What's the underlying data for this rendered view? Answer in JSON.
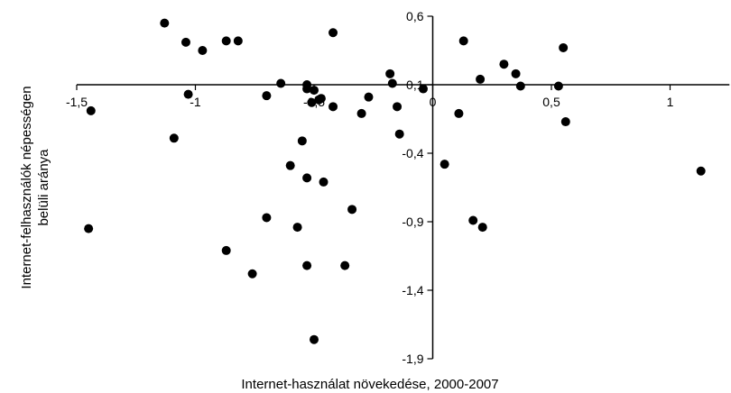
{
  "chart_data": {
    "type": "scatter",
    "xlabel": "Internet-használat növekedése, 2000-2007",
    "ylabel": [
      "Internet-felhasználók népességen",
      "belüli aránya"
    ],
    "xlim": [
      -1.5,
      1.25
    ],
    "ylim": [
      -1.9,
      0.6
    ],
    "x_ticks": [
      {
        "value": -1.5,
        "label": "-1,5"
      },
      {
        "value": -1,
        "label": "-1"
      },
      {
        "value": -0.5,
        "label": "-0,5"
      },
      {
        "value": 0,
        "label": "0"
      },
      {
        "value": 0.5,
        "label": "0,5"
      },
      {
        "value": 1,
        "label": "1"
      }
    ],
    "y_ticks": [
      {
        "value": 0.6,
        "label": "0,6"
      },
      {
        "value": 0.1,
        "label": "0,1"
      },
      {
        "value": -0.4,
        "label": "-0,4"
      },
      {
        "value": -0.9,
        "label": "-0,9"
      },
      {
        "value": -1.4,
        "label": "-1,4"
      },
      {
        "value": -1.9,
        "label": "-1,9"
      }
    ],
    "grid": false,
    "legend": "none",
    "marker_color": "#000000",
    "points": [
      {
        "x": -1.13,
        "y": 0.55
      },
      {
        "x": -1.04,
        "y": 0.41
      },
      {
        "x": -0.97,
        "y": 0.35
      },
      {
        "x": -0.87,
        "y": 0.42
      },
      {
        "x": -0.82,
        "y": 0.42
      },
      {
        "x": -0.42,
        "y": 0.48
      },
      {
        "x": 0.13,
        "y": 0.42
      },
      {
        "x": 0.55,
        "y": 0.37
      },
      {
        "x": 0.3,
        "y": 0.25
      },
      {
        "x": 0.35,
        "y": 0.18
      },
      {
        "x": 0.2,
        "y": 0.14
      },
      {
        "x": 0.37,
        "y": 0.09
      },
      {
        "x": 0.53,
        "y": 0.09
      },
      {
        "x": -0.18,
        "y": 0.18
      },
      {
        "x": -0.17,
        "y": 0.11
      },
      {
        "x": -0.04,
        "y": 0.07
      },
      {
        "x": -0.64,
        "y": 0.11
      },
      {
        "x": -0.53,
        "y": 0.1
      },
      {
        "x": -0.53,
        "y": 0.07
      },
      {
        "x": -0.5,
        "y": 0.06
      },
      {
        "x": -0.27,
        "y": 0.01
      },
      {
        "x": -1.03,
        "y": 0.03
      },
      {
        "x": -0.7,
        "y": 0.02
      },
      {
        "x": -0.48,
        "y": -0.01
      },
      {
        "x": -0.47,
        "y": 0.0
      },
      {
        "x": -0.51,
        "y": -0.03
      },
      {
        "x": -0.42,
        "y": -0.06
      },
      {
        "x": -0.15,
        "y": -0.06
      },
      {
        "x": -0.3,
        "y": -0.11
      },
      {
        "x": 0.11,
        "y": -0.11
      },
      {
        "x": -1.44,
        "y": -0.09
      },
      {
        "x": 0.56,
        "y": -0.17
      },
      {
        "x": -1.09,
        "y": -0.29
      },
      {
        "x": -0.14,
        "y": -0.26
      },
      {
        "x": -0.55,
        "y": -0.31
      },
      {
        "x": -0.6,
        "y": -0.49
      },
      {
        "x": 1.13,
        "y": -0.53
      },
      {
        "x": 0.05,
        "y": -0.48
      },
      {
        "x": -0.53,
        "y": -0.58
      },
      {
        "x": -0.46,
        "y": -0.61
      },
      {
        "x": -0.34,
        "y": -0.81
      },
      {
        "x": -0.7,
        "y": -0.87
      },
      {
        "x": -0.57,
        "y": -0.94
      },
      {
        "x": 0.17,
        "y": -0.89
      },
      {
        "x": 0.21,
        "y": -0.94
      },
      {
        "x": -1.45,
        "y": -0.95
      },
      {
        "x": -0.87,
        "y": -1.11
      },
      {
        "x": -0.76,
        "y": -1.28
      },
      {
        "x": -0.53,
        "y": -1.22
      },
      {
        "x": -0.37,
        "y": -1.22
      },
      {
        "x": -0.5,
        "y": -1.76
      }
    ]
  }
}
